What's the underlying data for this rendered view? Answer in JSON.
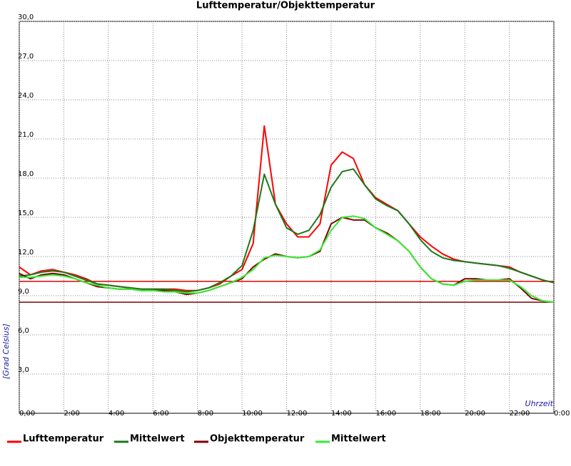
{
  "chart_data": {
    "type": "line",
    "title": "Lufttemperatur/Objekttemperatur",
    "y_label": "[Grad Celsius]",
    "x_label": "Uhrzeit",
    "x": [
      0,
      0.5,
      1,
      1.5,
      2,
      2.5,
      3,
      3.5,
      4,
      4.5,
      5,
      5.5,
      6,
      6.5,
      7,
      7.5,
      8,
      8.5,
      9,
      9.5,
      10,
      10.5,
      11,
      11.5,
      12,
      12.5,
      13,
      13.5,
      14,
      14.5,
      15,
      15.5,
      16,
      16.5,
      17,
      17.5,
      18,
      18.5,
      19,
      19.5,
      20,
      20.5,
      21,
      21.5,
      22,
      22.5,
      23,
      23.5,
      24
    ],
    "series": [
      {
        "name": "Lufttemperatur",
        "color": "#ff0000",
        "values": [
          11.2,
          10.6,
          10.9,
          11.0,
          10.8,
          10.6,
          10.3,
          9.9,
          9.8,
          9.7,
          9.6,
          9.5,
          9.5,
          9.5,
          9.5,
          9.4,
          9.4,
          9.6,
          9.9,
          10.5,
          11.0,
          13.0,
          22.0,
          16.0,
          14.5,
          13.5,
          13.5,
          14.5,
          19.0,
          20.0,
          19.5,
          17.5,
          16.5,
          16.0,
          15.5,
          14.5,
          13.5,
          12.8,
          12.2,
          11.8,
          11.6,
          11.5,
          11.4,
          11.3,
          11.2,
          10.8,
          10.5,
          10.2,
          10.0
        ]
      },
      {
        "name": "Mittelwert",
        "color": "#1a7a1a",
        "values": [
          10.5,
          10.6,
          10.8,
          10.9,
          10.8,
          10.5,
          10.2,
          9.9,
          9.8,
          9.7,
          9.6,
          9.5,
          9.5,
          9.5,
          9.4,
          9.3,
          9.4,
          9.6,
          10.0,
          10.5,
          11.3,
          14.0,
          18.3,
          16.0,
          14.2,
          13.7,
          14.0,
          15.2,
          17.3,
          18.5,
          18.7,
          17.5,
          16.4,
          15.9,
          15.5,
          14.5,
          13.3,
          12.4,
          11.9,
          11.7,
          11.6,
          11.5,
          11.4,
          11.3,
          11.1,
          10.8,
          10.5,
          10.2,
          10.0
        ]
      },
      {
        "name": "Objekttemperatur",
        "color": "#800000",
        "values": [
          10.7,
          10.3,
          10.6,
          10.7,
          10.6,
          10.3,
          10.0,
          9.7,
          9.6,
          9.5,
          9.5,
          9.4,
          9.4,
          9.4,
          9.3,
          9.1,
          9.2,
          9.4,
          9.7,
          10.0,
          10.3,
          11.2,
          11.8,
          12.2,
          12.0,
          11.9,
          12.0,
          12.4,
          14.5,
          15.0,
          14.8,
          14.8,
          14.2,
          13.8,
          13.2,
          12.4,
          11.2,
          10.3,
          9.9,
          9.8,
          10.3,
          10.3,
          10.2,
          10.2,
          10.3,
          9.6,
          8.8,
          8.6,
          8.5
        ]
      },
      {
        "name": "Mittelwert",
        "color": "#33ee33",
        "values": [
          10.4,
          10.4,
          10.5,
          10.6,
          10.5,
          10.3,
          10.0,
          9.8,
          9.6,
          9.5,
          9.5,
          9.4,
          9.4,
          9.3,
          9.3,
          9.2,
          9.2,
          9.4,
          9.7,
          10.0,
          10.4,
          11.0,
          11.9,
          12.1,
          12.0,
          11.9,
          12.0,
          12.5,
          14.0,
          15.0,
          15.1,
          14.9,
          14.2,
          13.7,
          13.2,
          12.4,
          11.2,
          10.3,
          9.9,
          9.8,
          10.1,
          10.2,
          10.2,
          10.2,
          10.2,
          9.7,
          9.0,
          8.6,
          8.5
        ]
      }
    ],
    "hlines": [
      {
        "value": 10.1,
        "color": "#e00000"
      },
      {
        "value": 8.5,
        "color": "#800000"
      }
    ],
    "xlim": [
      0,
      24
    ],
    "xticks": [
      {
        "value": 0,
        "label": "0,00"
      },
      {
        "value": 2,
        "label": "2:00"
      },
      {
        "value": 4,
        "label": "4:00"
      },
      {
        "value": 6,
        "label": "6:00"
      },
      {
        "value": 8,
        "label": "8:00"
      },
      {
        "value": 10,
        "label": "10:00"
      },
      {
        "value": 12,
        "label": "12:00"
      },
      {
        "value": 14,
        "label": "14:00"
      },
      {
        "value": 16,
        "label": "16:00"
      },
      {
        "value": 18,
        "label": "18:00"
      },
      {
        "value": 20,
        "label": "20:00"
      },
      {
        "value": 22,
        "label": "22:00"
      },
      {
        "value": 24,
        "label": "0:00"
      }
    ],
    "ylim": [
      0,
      30
    ],
    "yticks": [
      {
        "value": 3,
        "label": "3,0"
      },
      {
        "value": 6,
        "label": "6,0"
      },
      {
        "value": 9,
        "label": "9,0"
      },
      {
        "value": 12,
        "label": "12,0"
      },
      {
        "value": 15,
        "label": "15,0"
      },
      {
        "value": 18,
        "label": "18,0"
      },
      {
        "value": 21,
        "label": "21,0"
      },
      {
        "value": 24,
        "label": "24,0"
      },
      {
        "value": 27,
        "label": "27,0"
      },
      {
        "value": 30,
        "label": "30,0"
      }
    ],
    "grid": true
  }
}
